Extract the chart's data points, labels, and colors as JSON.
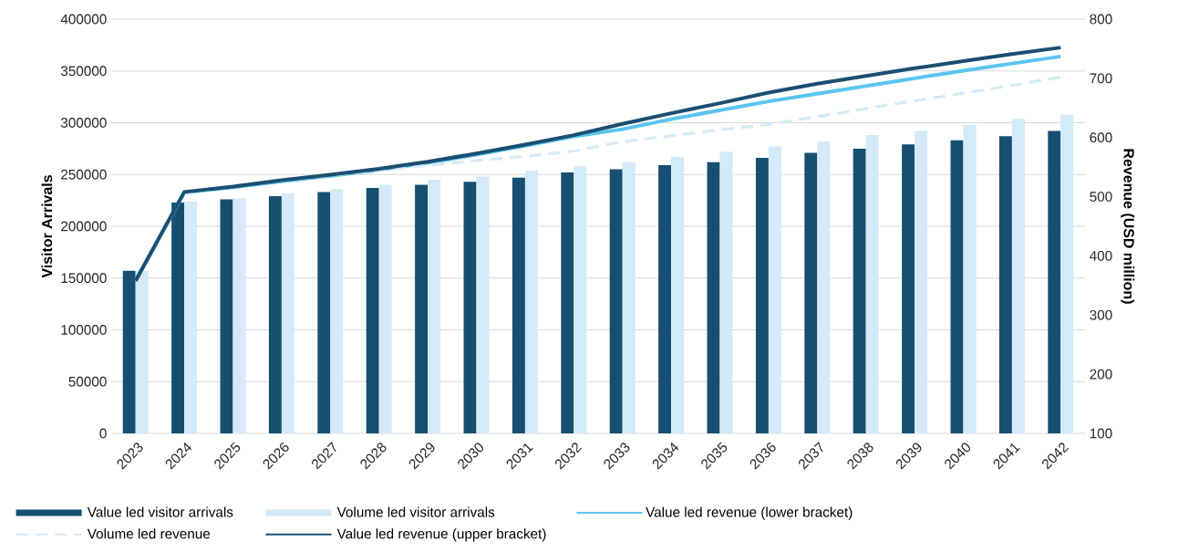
{
  "chart_data": {
    "type": "bar",
    "categories": [
      "2023",
      "2024",
      "2025",
      "2026",
      "2027",
      "2028",
      "2029",
      "2030",
      "2031",
      "2032",
      "2033",
      "2034",
      "2035",
      "2036",
      "2037",
      "2038",
      "2039",
      "2040",
      "2041",
      "2042"
    ],
    "ylabel": "Visitor Arrivals",
    "y2label": "Revenue (USD million)",
    "ylim": [
      0,
      400000
    ],
    "yticks": [
      0,
      50000,
      100000,
      150000,
      200000,
      250000,
      300000,
      350000,
      400000
    ],
    "y2lim": [
      100,
      800
    ],
    "y2ticks": [
      100,
      200,
      300,
      400,
      500,
      600,
      700,
      800
    ],
    "grid": "y",
    "legend": "bottom",
    "series": [
      {
        "name": "Value led visitor arrivals",
        "color": "#174f72",
        "values": [
          157000,
          223000,
          226000,
          229000,
          233000,
          237000,
          240000,
          243000,
          247000,
          252000,
          255000,
          259000,
          262000,
          266000,
          271000,
          275000,
          279000,
          283000,
          287000,
          292000
        ]
      },
      {
        "name": "Volume led visitor arrivals",
        "color": "#d4eaf8",
        "values": [
          157000,
          224000,
          227000,
          232000,
          236000,
          240000,
          245000,
          248000,
          254000,
          258000,
          262000,
          267000,
          272000,
          277000,
          282000,
          288000,
          292000,
          298000,
          304000,
          308000
        ]
      },
      {
        "name": "Value led revenue (lower bracket)",
        "type": "line",
        "axis": "y2",
        "color": "#5bc4f0",
        "line_style": "solid",
        "values": [
          358,
          507,
          516,
          526,
          535,
          545,
          557,
          571,
          586,
          602,
          614,
          631,
          646,
          661,
          674,
          687,
          700,
          713,
          725,
          737
        ]
      },
      {
        "name": "Volume led revenue",
        "type": "line",
        "axis": "y2",
        "color": "#d5eaf8",
        "line_style": "dashed",
        "values": [
          358,
          507,
          517,
          527,
          536,
          545,
          553,
          561,
          568,
          577,
          593,
          603,
          613,
          622,
          635,
          649,
          662,
          675,
          688,
          702
        ]
      },
      {
        "name": "Value led revenue (upper bracket)",
        "type": "line",
        "axis": "y2",
        "color": "#1a4f72",
        "line_style": "solid",
        "values": [
          358,
          508,
          517,
          528,
          537,
          547,
          559,
          573,
          588,
          604,
          623,
          641,
          658,
          676,
          691,
          704,
          717,
          729,
          741,
          752
        ]
      }
    ]
  }
}
